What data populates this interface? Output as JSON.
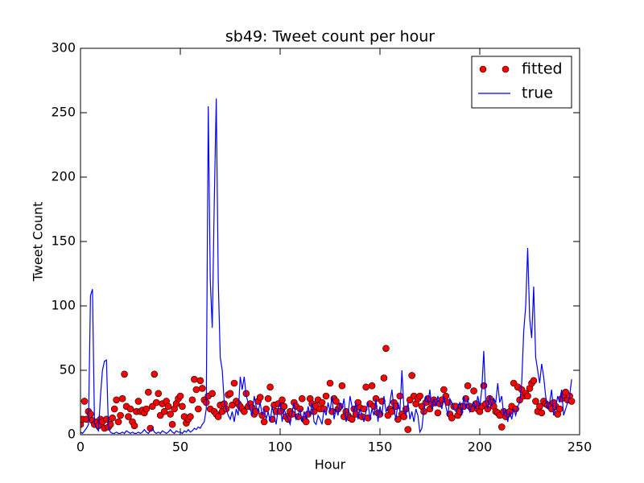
{
  "chart_data": {
    "type": "line",
    "title": "sb49: Tweet count per hour",
    "xlabel": "Hour",
    "ylabel": "Tweet Count",
    "xlim": [
      0,
      250
    ],
    "ylim": [
      0,
      300
    ],
    "xticks": [
      0,
      50,
      100,
      150,
      200,
      250
    ],
    "yticks": [
      0,
      50,
      100,
      150,
      200,
      250,
      300
    ],
    "legend": "upper right",
    "x": [
      0,
      1,
      2,
      3,
      4,
      5,
      6,
      7,
      8,
      9,
      10,
      11,
      12,
      13,
      14,
      15,
      16,
      17,
      18,
      19,
      20,
      21,
      22,
      23,
      24,
      25,
      26,
      27,
      28,
      29,
      30,
      31,
      32,
      33,
      34,
      35,
      36,
      37,
      38,
      39,
      40,
      41,
      42,
      43,
      44,
      45,
      46,
      47,
      48,
      49,
      50,
      51,
      52,
      53,
      54,
      55,
      56,
      57,
      58,
      59,
      60,
      61,
      62,
      63,
      64,
      65,
      66,
      67,
      68,
      69,
      70,
      71,
      72,
      73,
      74,
      75,
      76,
      77,
      78,
      79,
      80,
      81,
      82,
      83,
      84,
      85,
      86,
      87,
      88,
      89,
      90,
      91,
      92,
      93,
      94,
      95,
      96,
      97,
      98,
      99,
      100,
      101,
      102,
      103,
      104,
      105,
      106,
      107,
      108,
      109,
      110,
      111,
      112,
      113,
      114,
      115,
      116,
      117,
      118,
      119,
      120,
      121,
      122,
      123,
      124,
      125,
      126,
      127,
      128,
      129,
      130,
      131,
      132,
      133,
      134,
      135,
      136,
      137,
      138,
      139,
      140,
      141,
      142,
      143,
      144,
      145,
      146,
      147,
      148,
      149,
      150,
      151,
      152,
      153,
      154,
      155,
      156,
      157,
      158,
      159,
      160,
      161,
      162,
      163,
      164,
      165,
      166,
      167,
      168,
      169,
      170,
      171,
      172,
      173,
      174,
      175,
      176,
      177,
      178,
      179,
      180,
      181,
      182,
      183,
      184,
      185,
      186,
      187,
      188,
      189,
      190,
      191,
      192,
      193,
      194,
      195,
      196,
      197,
      198,
      199,
      200,
      201,
      202,
      203,
      204,
      205,
      206,
      207,
      208,
      209,
      210,
      211,
      212,
      213,
      214,
      215,
      216,
      217,
      218,
      219,
      220,
      221,
      222,
      223,
      224,
      225,
      226,
      227,
      228,
      229,
      230,
      231,
      232,
      233,
      234,
      235,
      236,
      237,
      238,
      239,
      240,
      241,
      242,
      243,
      244,
      245,
      246
    ],
    "series": [
      {
        "name": "fitted",
        "color": "#ff0000",
        "marker": "o",
        "linestyle": "none",
        "values": [
          8,
          12,
          26,
          12,
          18,
          16,
          11,
          8,
          10,
          7,
          12,
          10,
          5,
          12,
          6,
          8,
          13,
          20,
          27,
          10,
          15,
          28,
          47,
          22,
          14,
          20,
          10,
          7,
          18,
          26,
          18,
          19,
          17,
          20,
          33,
          5,
          22,
          47,
          25,
          32,
          15,
          24,
          18,
          26,
          22,
          16,
          8,
          20,
          24,
          28,
          30,
          22,
          14,
          9,
          12,
          14,
          27,
          43,
          35,
          20,
          42,
          36,
          27,
          25,
          30,
          20,
          32,
          18,
          16,
          14,
          23,
          18,
          24,
          20,
          31,
          32,
          23,
          40,
          26,
          24,
          22,
          20,
          18,
          32,
          22,
          24,
          21,
          16,
          18,
          26,
          29,
          15,
          10,
          20,
          28,
          37,
          12,
          23,
          18,
          24,
          18,
          27,
          22,
          14,
          12,
          18,
          16,
          25,
          22,
          14,
          20,
          28,
          12,
          10,
          16,
          28,
          24,
          18,
          22,
          27,
          20,
          25,
          20,
          30,
          10,
          40,
          18,
          28,
          26,
          20,
          22,
          38,
          14,
          18,
          15,
          13,
          12,
          20,
          16,
          25,
          21,
          14,
          20,
          37,
          13,
          24,
          38,
          22,
          28,
          17,
          16,
          26,
          44,
          67,
          15,
          20,
          18,
          25,
          22,
          12,
          30,
          16,
          14,
          20,
          4,
          27,
          46,
          30,
          24,
          28,
          30,
          22,
          18,
          25,
          28,
          20,
          24,
          27,
          25,
          17,
          24,
          27,
          35,
          30,
          25,
          16,
          13,
          22,
          22,
          15,
          18,
          22,
          22,
          28,
          38,
          22,
          20,
          34,
          24,
          20,
          18,
          22,
          38,
          24,
          20,
          28,
          25,
          22,
          18,
          17,
          15,
          6,
          18,
          14,
          16,
          18,
          22,
          40,
          20,
          37,
          27,
          35,
          30,
          32,
          30,
          36,
          40,
          42,
          26,
          18,
          22,
          17,
          26,
          24,
          23,
          22,
          20,
          25,
          22,
          16,
          20,
          28,
          31,
          33,
          27,
          30,
          26
        ]
      },
      {
        "name": "true",
        "color": "#0000ff",
        "marker": "none",
        "linestyle": "-",
        "values": [
          2,
          1,
          3,
          5,
          8,
          108,
          113,
          10,
          5,
          3,
          30,
          50,
          57,
          58,
          5,
          2,
          1,
          1,
          2,
          1,
          1,
          2,
          1,
          3,
          2,
          1,
          2,
          1,
          1,
          2,
          1,
          2,
          4,
          2,
          1,
          3,
          5,
          2,
          1,
          2,
          1,
          3,
          2,
          1,
          2,
          4,
          2,
          1,
          3,
          2,
          2,
          1,
          3,
          2,
          4,
          2,
          3,
          5,
          4,
          6,
          5,
          8,
          10,
          20,
          255,
          120,
          83,
          180,
          261,
          120,
          60,
          50,
          25,
          20,
          15,
          12,
          18,
          10,
          20,
          15,
          45,
          35,
          45,
          30,
          25,
          20,
          15,
          30,
          22,
          18,
          25,
          15,
          20,
          12,
          18,
          10,
          22,
          15,
          8,
          20,
          25,
          10,
          20,
          15,
          12,
          8,
          18,
          25,
          12,
          15,
          20,
          10,
          18,
          12,
          22,
          15,
          25,
          10,
          8,
          15,
          12,
          8,
          20,
          15,
          25,
          18,
          30,
          12,
          20,
          15,
          25,
          20,
          28,
          10,
          15,
          30,
          22,
          18,
          25,
          12,
          20,
          15,
          10,
          18,
          25,
          12,
          20,
          15,
          28,
          10,
          22,
          15,
          30,
          18,
          20,
          25,
          35,
          20,
          12,
          25,
          18,
          50,
          20,
          15,
          25,
          12,
          18,
          10,
          20,
          15,
          2,
          5,
          20,
          30,
          25,
          35,
          20,
          28,
          22,
          30,
          25,
          20,
          30,
          22,
          15,
          28,
          25,
          20,
          18,
          22,
          25,
          15,
          30,
          20,
          28,
          18,
          22,
          25,
          20,
          30,
          22,
          35,
          65,
          25,
          20,
          30,
          22,
          28,
          25,
          40,
          25,
          30,
          15,
          20,
          10,
          18,
          12,
          20,
          15,
          22,
          25,
          40,
          80,
          100,
          145,
          90,
          75,
          115,
          60,
          50,
          40,
          55,
          45,
          30,
          20,
          25,
          35,
          15,
          20,
          30,
          25,
          35,
          15,
          20,
          25,
          30,
          43
        ]
      }
    ]
  }
}
